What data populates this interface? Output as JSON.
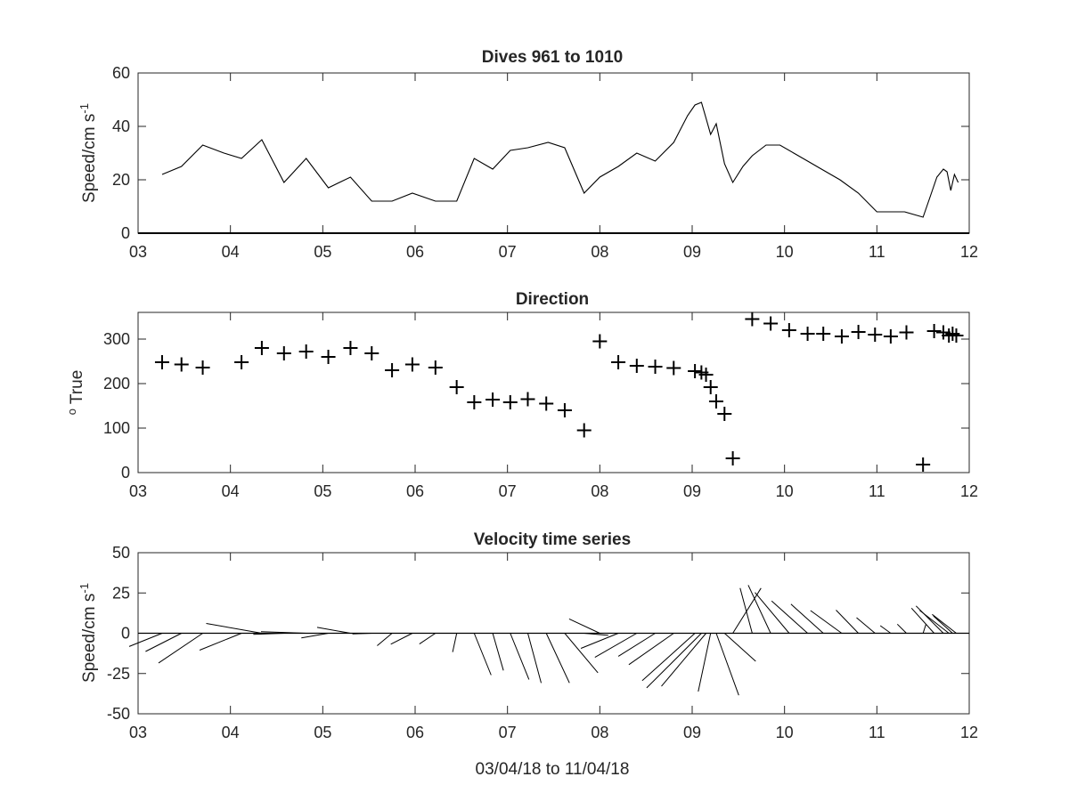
{
  "chart_data": [
    {
      "type": "line",
      "title": "Dives 961 to 1010",
      "ylabel": "Speed/cm s",
      "ylabel_superscript": "-1",
      "xlim": [
        3,
        12
      ],
      "ylim": [
        0,
        60
      ],
      "xticks": [
        "03",
        "04",
        "05",
        "06",
        "07",
        "08",
        "09",
        "10",
        "11",
        "12"
      ],
      "yticks": [
        "0",
        "20",
        "40",
        "60"
      ],
      "x": [
        3.26,
        3.47,
        3.7,
        3.93,
        4.12,
        4.34,
        4.58,
        4.82,
        5.06,
        5.3,
        5.53,
        5.75,
        5.97,
        6.22,
        6.45,
        6.64,
        6.84,
        7.03,
        7.22,
        7.44,
        7.62,
        7.83,
        8.0,
        8.2,
        8.4,
        8.6,
        8.8,
        8.95,
        9.03,
        9.1,
        9.15,
        9.2,
        9.26,
        9.35,
        9.44,
        9.55,
        9.65,
        9.8,
        9.95,
        10.1,
        10.25,
        10.4,
        10.6,
        10.8,
        11.0,
        11.15,
        11.3,
        11.5,
        11.58,
        11.65,
        11.72,
        11.76,
        11.8,
        11.84,
        11.88
      ],
      "series": [
        {
          "values": [
            22,
            25,
            33,
            30,
            28,
            35,
            19,
            28,
            17,
            21,
            12,
            12,
            15,
            12,
            12,
            28,
            24,
            31,
            32,
            34,
            32,
            15,
            21,
            25,
            30,
            27,
            34,
            44,
            48,
            49,
            43,
            37,
            41,
            26,
            19,
            25,
            29,
            33,
            33,
            30,
            27,
            24,
            20,
            15,
            8,
            8,
            8,
            6,
            14,
            21,
            24,
            23,
            16,
            22,
            19
          ]
        }
      ]
    },
    {
      "type": "scatter",
      "title": "Direction",
      "ylabel": "True",
      "ylabel_prefix_superscript": "o",
      "xlim": [
        3,
        12
      ],
      "ylim": [
        0,
        360
      ],
      "xticks": [
        "03",
        "04",
        "05",
        "06",
        "07",
        "08",
        "09",
        "10",
        "11",
        "12"
      ],
      "yticks": [
        "0",
        "100",
        "200",
        "300"
      ],
      "marker": "+",
      "x": [
        3.26,
        3.47,
        3.7,
        4.12,
        4.34,
        4.58,
        4.82,
        5.06,
        5.3,
        5.53,
        5.75,
        5.97,
        6.22,
        6.45,
        6.64,
        6.84,
        7.03,
        7.22,
        7.42,
        7.62,
        7.83,
        8.0,
        8.2,
        8.4,
        8.6,
        8.8,
        9.03,
        9.1,
        9.15,
        9.2,
        9.26,
        9.35,
        9.44,
        9.65,
        9.85,
        10.05,
        10.25,
        10.42,
        10.62,
        10.8,
        10.98,
        11.15,
        11.32,
        11.5,
        11.62,
        11.72,
        11.78,
        11.82,
        11.86
      ],
      "y": [
        248,
        243,
        236,
        248,
        280,
        268,
        272,
        260,
        280,
        268,
        230,
        243,
        236,
        192,
        158,
        164,
        158,
        165,
        155,
        140,
        95,
        295,
        248,
        240,
        238,
        235,
        228,
        225,
        220,
        192,
        160,
        132,
        32,
        345,
        335,
        320,
        312,
        312,
        306,
        316,
        310,
        306,
        315,
        18,
        318,
        315,
        308,
        312,
        308
      ]
    },
    {
      "type": "quiver",
      "title": "Velocity time series",
      "ylabel": "Speed/cm s",
      "ylabel_superscript": "-1",
      "xlabel": "03/04/18 to 11/04/18",
      "xlim": [
        3,
        12
      ],
      "ylim": [
        -50,
        50
      ],
      "xticks": [
        "03",
        "04",
        "05",
        "06",
        "07",
        "08",
        "09",
        "10",
        "11",
        "12"
      ],
      "yticks": [
        "-50",
        "-25",
        "0",
        "25",
        "50"
      ],
      "x": [
        3.26,
        3.47,
        3.7,
        4.12,
        4.34,
        4.58,
        4.82,
        5.06,
        5.3,
        5.53,
        5.75,
        5.97,
        6.22,
        6.45,
        6.64,
        6.84,
        7.03,
        7.22,
        7.42,
        7.62,
        7.83,
        8.0,
        8.2,
        8.4,
        8.6,
        8.8,
        9.03,
        9.1,
        9.15,
        9.2,
        9.26,
        9.35,
        9.44,
        9.65,
        9.85,
        10.05,
        10.25,
        10.42,
        10.62,
        10.8,
        10.98,
        11.15,
        11.32,
        11.5,
        11.62,
        11.72,
        11.78,
        11.82,
        11.86
      ],
      "direction": [
        248,
        243,
        236,
        248,
        280,
        268,
        272,
        260,
        280,
        268,
        230,
        243,
        236,
        192,
        158,
        164,
        158,
        165,
        155,
        140,
        95,
        295,
        248,
        240,
        238,
        235,
        228,
        225,
        220,
        192,
        160,
        132,
        32,
        345,
        335,
        320,
        312,
        312,
        306,
        316,
        310,
        306,
        315,
        18,
        318,
        315,
        308,
        312,
        308
      ],
      "speed": [
        22,
        25,
        33,
        28,
        35,
        19,
        28,
        17,
        21,
        12,
        12,
        15,
        12,
        12,
        28,
        24,
        31,
        32,
        34,
        32,
        15,
        21,
        25,
        30,
        27,
        34,
        44,
        48,
        43,
        37,
        41,
        26,
        33,
        29,
        33,
        33,
        30,
        27,
        24,
        20,
        15,
        8,
        8,
        6,
        21,
        24,
        23,
        16,
        19
      ]
    }
  ]
}
